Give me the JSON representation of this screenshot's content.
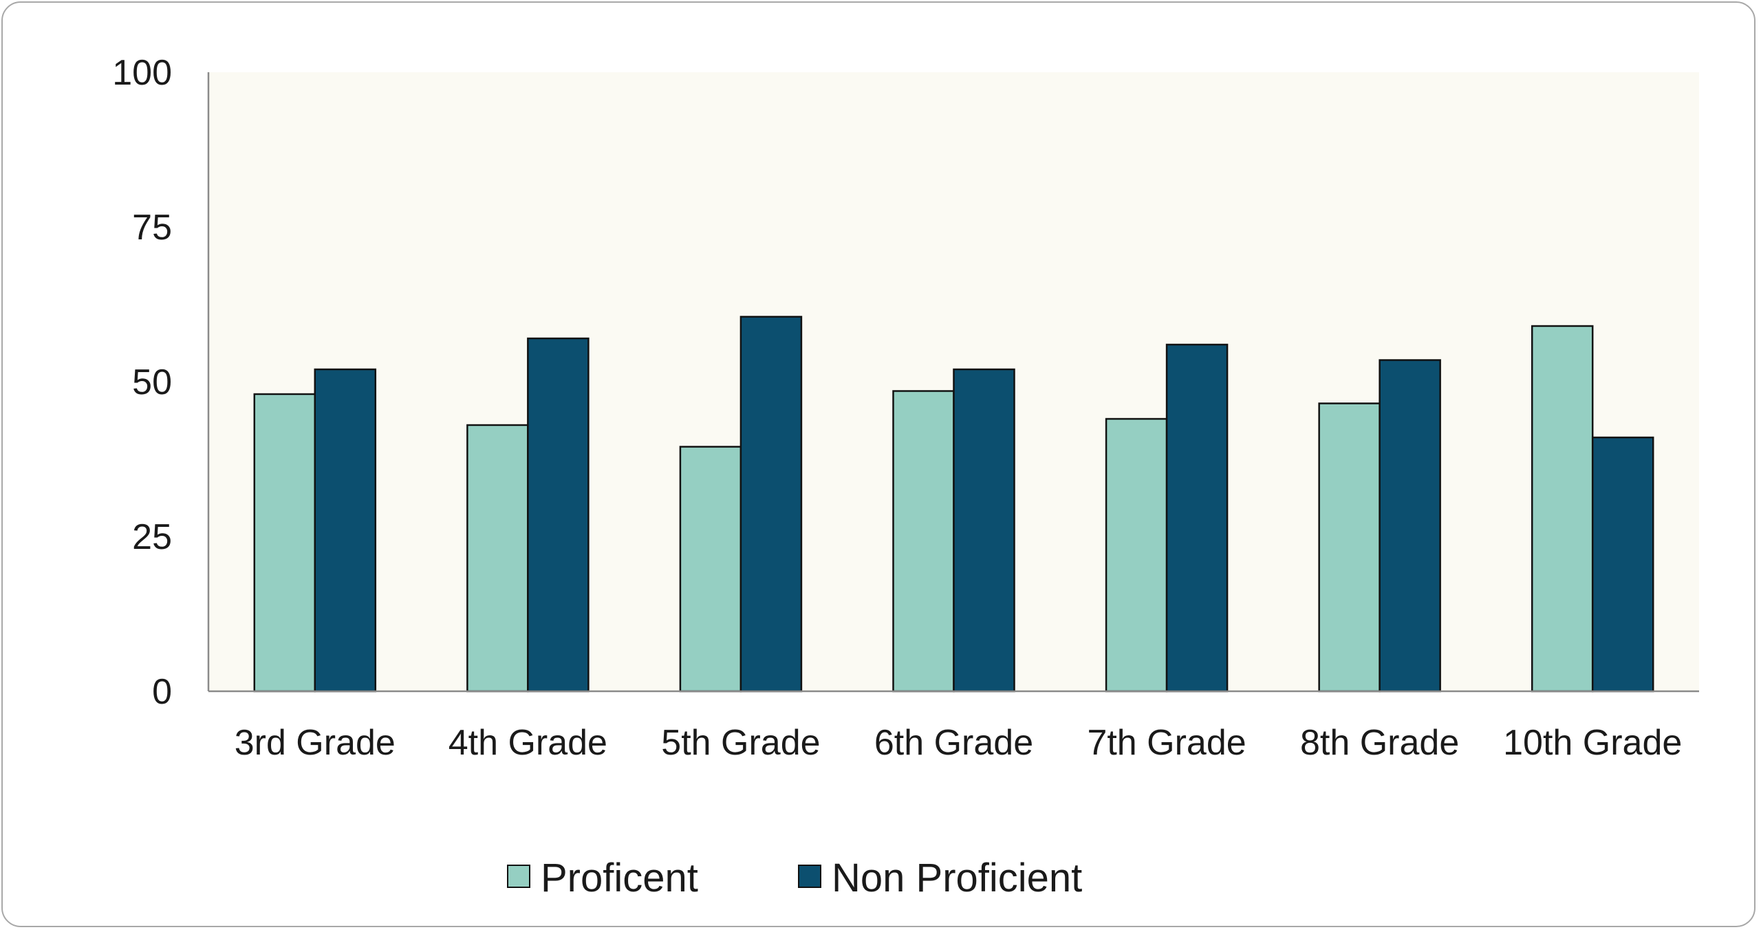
{
  "chart_data": {
    "type": "bar",
    "title": "",
    "xlabel": "",
    "ylabel": "",
    "categories": [
      "3rd Grade",
      "4th Grade",
      "5th Grade",
      "6th Grade",
      "7th Grade",
      "8th Grade",
      "10th Grade"
    ],
    "series": [
      {
        "name": "Proficent",
        "color": "#95cfc2",
        "values": [
          48,
          43,
          39.5,
          48.5,
          44,
          46.5,
          59
        ]
      },
      {
        "name": "Non Proficient",
        "color": "#0c4f6f",
        "values": [
          52,
          57,
          60.5,
          52,
          56,
          53.5,
          41
        ]
      }
    ],
    "ylim": [
      0,
      100
    ],
    "yticks": [
      "0",
      "25",
      "50",
      "75",
      "100"
    ],
    "grid": false,
    "plot_background": "#fbfaf3",
    "legend_position": "bottom"
  }
}
